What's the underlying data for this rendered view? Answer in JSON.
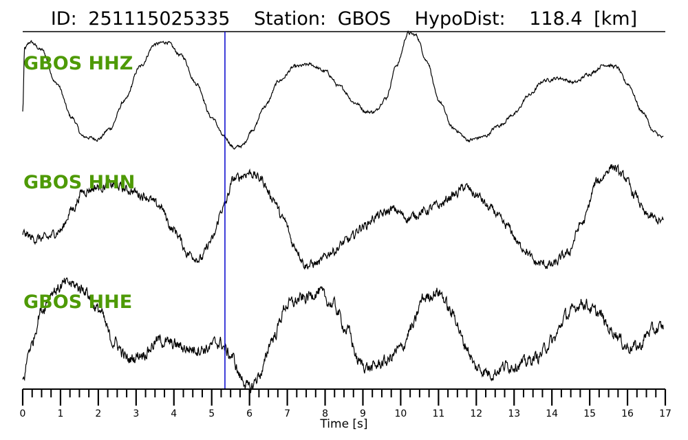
{
  "title": {
    "id_label": "ID:",
    "id_value": "251115025335",
    "station_label": "Station:",
    "station_value": "GBOS",
    "dist_label": "HypoDist:",
    "dist_value": "118.4",
    "dist_unit": "[km]"
  },
  "colors": {
    "trace": "#000000",
    "channel_label": "#4e9a06",
    "pick_line": "#0000cc",
    "axis": "#000000"
  },
  "chart_data": {
    "type": "line",
    "xlabel": "Time [s]",
    "xlim": [
      0,
      17
    ],
    "major_ticks": [
      "0",
      "1",
      "2",
      "3",
      "4",
      "5",
      "6",
      "7",
      "8",
      "9",
      "10",
      "11",
      "12",
      "13",
      "14",
      "15",
      "16",
      "17"
    ],
    "minor_tick_step": 0.25,
    "pick_time": 5.35,
    "series": [
      {
        "name": "GBOS HHZ",
        "noise": 0.012,
        "points": [
          [
            0,
            0.3
          ],
          [
            0.05,
            0.86
          ],
          [
            0.2,
            0.92
          ],
          [
            0.5,
            0.85
          ],
          [
            0.9,
            0.55
          ],
          [
            1.3,
            0.25
          ],
          [
            1.6,
            0.08
          ],
          [
            2.0,
            0.06
          ],
          [
            2.3,
            0.15
          ],
          [
            2.7,
            0.4
          ],
          [
            3.1,
            0.7
          ],
          [
            3.5,
            0.9
          ],
          [
            3.8,
            0.92
          ],
          [
            4.2,
            0.8
          ],
          [
            4.6,
            0.55
          ],
          [
            5.0,
            0.25
          ],
          [
            5.35,
            0.07
          ],
          [
            5.6,
            -0.02
          ],
          [
            5.8,
            0.0
          ],
          [
            6.1,
            0.15
          ],
          [
            6.4,
            0.35
          ],
          [
            6.8,
            0.58
          ],
          [
            7.2,
            0.7
          ],
          [
            7.6,
            0.72
          ],
          [
            8.0,
            0.66
          ],
          [
            8.4,
            0.52
          ],
          [
            8.8,
            0.38
          ],
          [
            9.1,
            0.3
          ],
          [
            9.3,
            0.3
          ],
          [
            9.6,
            0.42
          ],
          [
            9.9,
            0.72
          ],
          [
            10.2,
            1.0
          ],
          [
            10.4,
            0.98
          ],
          [
            10.7,
            0.75
          ],
          [
            11.0,
            0.4
          ],
          [
            11.4,
            0.15
          ],
          [
            11.8,
            0.05
          ],
          [
            12.2,
            0.08
          ],
          [
            12.6,
            0.18
          ],
          [
            13.0,
            0.28
          ],
          [
            13.4,
            0.45
          ],
          [
            13.8,
            0.58
          ],
          [
            14.2,
            0.6
          ],
          [
            14.6,
            0.56
          ],
          [
            15.0,
            0.64
          ],
          [
            15.4,
            0.72
          ],
          [
            15.7,
            0.7
          ],
          [
            16.0,
            0.55
          ],
          [
            16.4,
            0.3
          ],
          [
            16.7,
            0.12
          ],
          [
            16.95,
            0.07
          ]
        ]
      },
      {
        "name": "GBOS HHN",
        "noise": 0.035,
        "points": [
          [
            0,
            0.35
          ],
          [
            0.3,
            0.3
          ],
          [
            0.6,
            0.3
          ],
          [
            1.0,
            0.38
          ],
          [
            1.3,
            0.58
          ],
          [
            1.6,
            0.76
          ],
          [
            2.0,
            0.8
          ],
          [
            2.4,
            0.82
          ],
          [
            2.8,
            0.77
          ],
          [
            3.2,
            0.72
          ],
          [
            3.6,
            0.62
          ],
          [
            4.0,
            0.38
          ],
          [
            4.4,
            0.15
          ],
          [
            4.7,
            0.1
          ],
          [
            5.0,
            0.28
          ],
          [
            5.3,
            0.6
          ],
          [
            5.6,
            0.88
          ],
          [
            6.0,
            0.94
          ],
          [
            6.3,
            0.88
          ],
          [
            6.6,
            0.7
          ],
          [
            6.9,
            0.48
          ],
          [
            7.2,
            0.22
          ],
          [
            7.5,
            0.04
          ],
          [
            7.8,
            0.06
          ],
          [
            8.2,
            0.18
          ],
          [
            8.6,
            0.28
          ],
          [
            9.0,
            0.42
          ],
          [
            9.4,
            0.52
          ],
          [
            9.8,
            0.58
          ],
          [
            10.2,
            0.5
          ],
          [
            10.6,
            0.56
          ],
          [
            11.0,
            0.62
          ],
          [
            11.4,
            0.72
          ],
          [
            11.7,
            0.8
          ],
          [
            12.0,
            0.72
          ],
          [
            12.4,
            0.58
          ],
          [
            12.8,
            0.42
          ],
          [
            13.2,
            0.22
          ],
          [
            13.6,
            0.06
          ],
          [
            14.0,
            0.04
          ],
          [
            14.4,
            0.15
          ],
          [
            14.8,
            0.45
          ],
          [
            15.2,
            0.85
          ],
          [
            15.6,
            1.0
          ],
          [
            15.9,
            0.9
          ],
          [
            16.2,
            0.72
          ],
          [
            16.5,
            0.52
          ],
          [
            16.95,
            0.46
          ]
        ]
      },
      {
        "name": "GBOS HHE",
        "noise": 0.045,
        "points": [
          [
            0,
            0.08
          ],
          [
            0.2,
            0.4
          ],
          [
            0.5,
            0.75
          ],
          [
            0.8,
            0.93
          ],
          [
            1.2,
            1.0
          ],
          [
            1.6,
            0.95
          ],
          [
            2.0,
            0.75
          ],
          [
            2.4,
            0.45
          ],
          [
            2.8,
            0.28
          ],
          [
            3.2,
            0.34
          ],
          [
            3.6,
            0.46
          ],
          [
            4.0,
            0.42
          ],
          [
            4.4,
            0.38
          ],
          [
            4.8,
            0.38
          ],
          [
            5.2,
            0.44
          ],
          [
            5.5,
            0.32
          ],
          [
            5.8,
            0.1
          ],
          [
            6.0,
            0.0
          ],
          [
            6.3,
            0.15
          ],
          [
            6.6,
            0.48
          ],
          [
            7.0,
            0.8
          ],
          [
            7.4,
            0.85
          ],
          [
            7.8,
            0.92
          ],
          [
            8.2,
            0.8
          ],
          [
            8.6,
            0.55
          ],
          [
            8.9,
            0.25
          ],
          [
            9.2,
            0.2
          ],
          [
            9.6,
            0.26
          ],
          [
            10.0,
            0.38
          ],
          [
            10.3,
            0.58
          ],
          [
            10.6,
            0.86
          ],
          [
            11.0,
            0.92
          ],
          [
            11.4,
            0.7
          ],
          [
            11.7,
            0.42
          ],
          [
            12.0,
            0.2
          ],
          [
            12.4,
            0.15
          ],
          [
            12.8,
            0.22
          ],
          [
            13.2,
            0.24
          ],
          [
            13.6,
            0.3
          ],
          [
            14.0,
            0.45
          ],
          [
            14.4,
            0.7
          ],
          [
            14.8,
            0.82
          ],
          [
            15.2,
            0.72
          ],
          [
            15.6,
            0.55
          ],
          [
            16.0,
            0.4
          ],
          [
            16.3,
            0.4
          ],
          [
            16.6,
            0.55
          ],
          [
            16.95,
            0.58
          ]
        ]
      }
    ]
  }
}
